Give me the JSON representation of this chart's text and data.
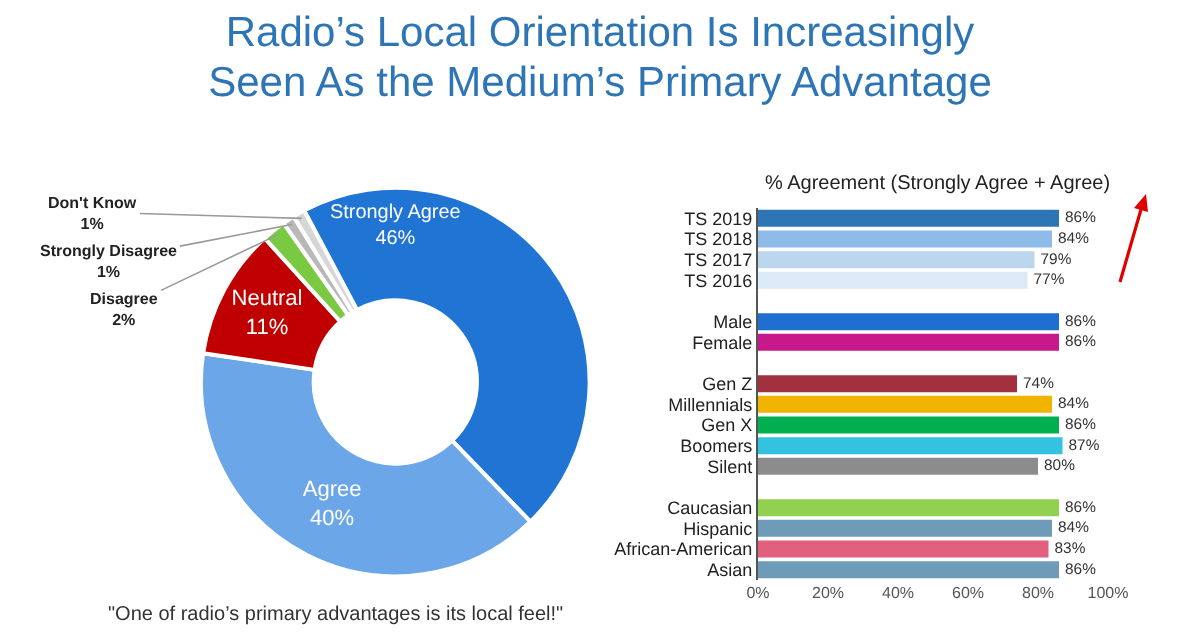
{
  "chart_data": [
    {
      "type": "donut",
      "title": "Radio’s Local Orientation Is Increasingly Seen As the Medium’s Primary Advantage",
      "categories": [
        "Strongly Agree",
        "Agree",
        "Neutral",
        "Disagree",
        "Strongly Disagree",
        "Don't Know"
      ],
      "values": [
        46,
        40,
        11,
        2,
        1,
        1
      ],
      "value_labels": [
        "46%",
        "40%",
        "11%",
        "2%",
        "1%",
        "1%"
      ],
      "data_labels": true,
      "colors": [
        "#1f74d4",
        "#6aa6e8",
        "#c00000",
        "#7ac943",
        "#b8b8b8",
        "#d6d6d6"
      ],
      "legend": false,
      "annotations": [
        "\"One of radio’s primary advantages is its local feel!\""
      ]
    },
    {
      "type": "bar",
      "orientation": "horizontal",
      "title": "% Agreement (Strongly Agree + Agree)",
      "categories": [
        "TS 2019",
        "TS 2018",
        "TS 2017",
        "TS 2016",
        null,
        "Male",
        "Female",
        null,
        "Gen Z",
        "Millennials",
        "Gen X",
        "Boomers",
        "Silent",
        null,
        "Caucasian",
        "Hispanic",
        "African-American",
        "Asian"
      ],
      "values": [
        86,
        84,
        79,
        77,
        null,
        86,
        86,
        null,
        74,
        84,
        86,
        87,
        80,
        null,
        86,
        84,
        83,
        86
      ],
      "value_labels": [
        "86%",
        "84%",
        "79%",
        "77%",
        null,
        "86%",
        "86%",
        null,
        "74%",
        "84%",
        "86%",
        "87%",
        "80%",
        null,
        "86%",
        "84%",
        "83%",
        "86%"
      ],
      "data_labels": true,
      "colors": [
        "#2e75b6",
        "#8fbbe8",
        "#bcd6ee",
        "#dceaf7",
        null,
        "#1f6fd0",
        "#c8198c",
        null,
        "#a3303f",
        "#f0b400",
        "#00b050",
        "#33c3e0",
        "#8c8c8c",
        null,
        "#92d050",
        "#6e9bb8",
        "#e0607e",
        "#6e9bb8"
      ],
      "xlim": [
        0,
        100
      ],
      "xticks": [
        {
          "value": 0,
          "label": "0%"
        },
        {
          "value": 20,
          "label": "20%"
        },
        {
          "value": 40,
          "label": "40%"
        },
        {
          "value": 60,
          "label": "60%"
        },
        {
          "value": 80,
          "label": "80%"
        },
        {
          "value": 100,
          "label": "100%"
        }
      ],
      "grid": false,
      "legend": false
    }
  ]
}
